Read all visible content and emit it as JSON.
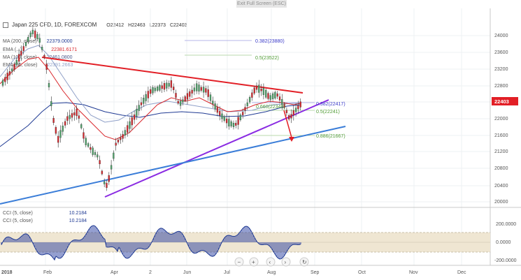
{
  "window": {
    "exit_label": "Exit Full Screen (ESC)"
  },
  "header": {
    "symbol_title": "Japan 225 CFD, 1D, FOREXCOM",
    "open": "O22412",
    "high": "H22463",
    "low": "L22373",
    "close": "C22403"
  },
  "indicators": [
    {
      "name": "MA (200, close)",
      "value": "22379.0000",
      "color": "#1f3a93"
    },
    {
      "name": "EMA (...)",
      "value": "22381.6171",
      "color": "#d9262b"
    },
    {
      "name": "MA (100, close)",
      "value": "22461.0800",
      "color": "#4c5a8c"
    },
    {
      "name": "EMA (55, close)",
      "value": "22391.2663",
      "color": "#8fa0c8"
    }
  ],
  "cci_legend": [
    {
      "name": "CCI (5, close)",
      "value": "10.2184"
    },
    {
      "name": "CCI (5, close)",
      "value": "10.2184"
    }
  ],
  "fib_labels": [
    {
      "text": "0.382(23880)",
      "color": "#3a3ac8"
    },
    {
      "text": "0.5(23522)",
      "color": "#4f9b34"
    },
    {
      "text": "0.382(22417)",
      "color": "#3a3ac8"
    },
    {
      "text": "0.5(22241)",
      "color": "#4f9b34"
    },
    {
      "text": "0.886(21667)",
      "color": "#4f9b34"
    },
    {
      "text": "0.660(22348)",
      "color": "#4f9b34"
    }
  ],
  "price_axis": [
    "24000",
    "23600",
    "23200",
    "22800",
    "22400",
    "22000",
    "21600",
    "21200",
    "20800",
    "20400",
    "20000"
  ],
  "current_price": "22403",
  "cci_axis": [
    "200.0000",
    "0.0000",
    "-200.0000"
  ],
  "time_axis": [
    "2018",
    "Feb",
    "Apr",
    "2",
    "Jun",
    "Jul",
    "Aug",
    "Sep",
    "Oct",
    "Nov",
    "Dec"
  ],
  "colors": {
    "up": "#4ea36a",
    "down": "#d9262b",
    "resistance": "#e21f26",
    "support_purple": "#8a2be2",
    "support_blue": "#3a7dd8",
    "price_tag": "#e21f26",
    "cci_band": "#efe6d2",
    "cci_line": "#1f3a93"
  }
}
